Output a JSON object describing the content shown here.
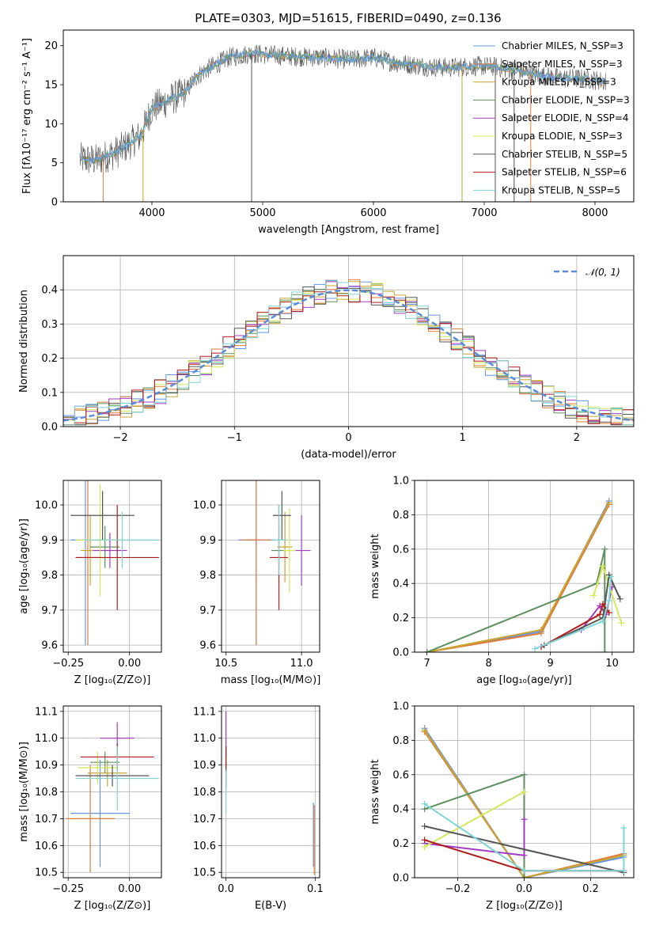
{
  "title": "PLATE=0303, MJD=51615, FIBERID=0490, z=0.136",
  "colors": [
    "#6495ed",
    "#e07b39",
    "#c8a530",
    "#5e8f5e",
    "#a23bc0",
    "#d4e85a",
    "#555555",
    "#b01c1c",
    "#7fd4d4"
  ],
  "chart_data": [
    {
      "id": "spectrum",
      "type": "line",
      "xlabel": "wavelength [Angstrom, rest frame]",
      "ylabel": "Flux [fλ10⁻¹⁷ erg cm⁻² s⁻¹ A⁻¹]",
      "xlim": [
        3200,
        8350
      ],
      "ylim": [
        0,
        22
      ],
      "xticks": [
        "4000",
        "5000",
        "6000",
        "7000",
        "8000"
      ],
      "yticks": [
        "0",
        "5",
        "10",
        "15",
        "20"
      ],
      "legend_position": "upper right",
      "legend": [
        "Chabrier MILES, N_SSP=3",
        "Salpeter MILES, N_SSP=3",
        "Kroupa MILES, N_SSP=3",
        "Chabrier ELODIE, N_SSP=3",
        "Salpeter ELODIE, N_SSP=4",
        "Kroupa ELODIE, N_SSP=3",
        "Chabrier STELIB, N_SSP=5",
        "Salpeter STELIB, N_SSP=6",
        "Kroupa STELIB, N_SSP=5"
      ],
      "continuum": {
        "x": [
          3350,
          3500,
          3700,
          3900,
          4000,
          4150,
          4300,
          4400,
          4500,
          4700,
          4900,
          5100,
          5300,
          5500,
          5800,
          6000,
          6200,
          6500,
          6700,
          6900,
          7100,
          7300,
          7500,
          7700,
          7900,
          8100
        ],
        "y": [
          5.5,
          5.3,
          6.5,
          8.5,
          12,
          13,
          14,
          16,
          17,
          18.5,
          19,
          18.8,
          18.6,
          18.5,
          18.2,
          18.5,
          17.8,
          17.3,
          17.2,
          17.4,
          17.3,
          16.8,
          16.2,
          15.8,
          15.8,
          15.4
        ]
      },
      "dropouts": [
        {
          "x": 3560,
          "series": "Salpeter MILES"
        },
        {
          "x": 3920,
          "series": "Kroupa MILES"
        },
        {
          "x": 4900,
          "series": "Chabrier STELIB"
        },
        {
          "x": 6800,
          "series": "Kroupa MILES"
        },
        {
          "x": 7100,
          "series": "Chabrier STELIB"
        },
        {
          "x": 7270,
          "series": "Chabrier STELIB"
        },
        {
          "x": 7420,
          "series": "Salpeter MILES"
        }
      ]
    },
    {
      "id": "residuals",
      "type": "histogram",
      "xlabel": "(data-model)/error",
      "ylabel": "Normed distribution",
      "xlim": [
        -2.5,
        2.5
      ],
      "ylim": [
        0,
        0.5
      ],
      "xticks": [
        "−2",
        "−1",
        "0",
        "1",
        "2"
      ],
      "yticks": [
        "0.0",
        "0.1",
        "0.2",
        "0.3",
        "0.4"
      ],
      "legend": [
        "𝒩(0, 1)"
      ],
      "bin_width": 0.1
    },
    {
      "id": "age-vs-Z",
      "type": "scatter",
      "xlabel": "Z [log₁₀(Z/Z⊙)]",
      "ylabel": "age  [log₁₀(age/yr)]",
      "xlim": [
        -0.27,
        0.13
      ],
      "ylim": [
        9.58,
        10.07
      ],
      "xticks": [
        "−0.25",
        "0.00"
      ],
      "yticks": [
        "9.6",
        "9.7",
        "9.8",
        "9.9",
        "10.0"
      ],
      "points": [
        {
          "x": -0.18,
          "y": 9.9,
          "xerr": 0.06,
          "yerr": 0.3
        },
        {
          "x": -0.17,
          "y": 9.85,
          "xerr": 0.05,
          "yerr": 0.25
        },
        {
          "x": -0.16,
          "y": 9.87,
          "xerr": 0.04,
          "yerr": 0.1
        },
        {
          "x": -0.1,
          "y": 9.88,
          "xerr": 0.06,
          "yerr": 0.06
        },
        {
          "x": -0.08,
          "y": 9.87,
          "xerr": 0.07,
          "yerr": 0.05
        },
        {
          "x": -0.12,
          "y": 9.9,
          "xerr": 0.1,
          "yerr": 0.16
        },
        {
          "x": -0.11,
          "y": 9.97,
          "xerr": 0.13,
          "yerr": 0.07
        },
        {
          "x": -0.05,
          "y": 9.85,
          "xerr": 0.17,
          "yerr": 0.15
        },
        {
          "x": -0.03,
          "y": 9.9,
          "xerr": 0.15,
          "yerr": 0.08
        }
      ]
    },
    {
      "id": "age-vs-mass",
      "type": "scatter",
      "xlabel": "mass [log₁₀(M/M⊙)]",
      "ylabel": "",
      "xlim": [
        10.47,
        11.12
      ],
      "ylim": [
        9.58,
        10.07
      ],
      "xticks": [
        "10.5",
        "11.0"
      ],
      "yticks": [
        "9.6",
        "9.7",
        "9.8",
        "9.9",
        "10.0"
      ],
      "points": [
        {
          "x": 10.7,
          "y": 9.9,
          "xerr": 0.12,
          "yerr": 0.3
        },
        {
          "x": 10.7,
          "y": 9.9,
          "xerr": 0.1,
          "yerr": 0.3
        },
        {
          "x": 10.89,
          "y": 9.88,
          "xerr": 0.05,
          "yerr": 0.1
        },
        {
          "x": 10.85,
          "y": 9.87,
          "xerr": 0.05,
          "yerr": 0.08
        },
        {
          "x": 11.0,
          "y": 9.87,
          "xerr": 0.06,
          "yerr": 0.1
        },
        {
          "x": 10.92,
          "y": 9.87,
          "xerr": 0.04,
          "yerr": 0.12
        },
        {
          "x": 10.87,
          "y": 9.97,
          "xerr": 0.06,
          "yerr": 0.07
        },
        {
          "x": 10.85,
          "y": 9.85,
          "xerr": 0.06,
          "yerr": 0.15
        },
        {
          "x": 10.85,
          "y": 9.9,
          "xerr": 0.05,
          "yerr": 0.1
        }
      ]
    },
    {
      "id": "mass-weight-vs-age",
      "type": "line",
      "xlabel": "age  [log₁₀(age/yr)]",
      "ylabel": "mass weight",
      "xlim": [
        6.8,
        10.35
      ],
      "ylim": [
        0,
        1
      ],
      "xticks": [
        "7",
        "8",
        "9",
        "10"
      ],
      "yticks": [
        "0.0",
        "0.2",
        "0.4",
        "0.6",
        "0.8",
        "1.0"
      ],
      "series": [
        {
          "x": [
            7.0,
            8.85,
            9.95
          ],
          "y": [
            0.0,
            0.12,
            0.88
          ]
        },
        {
          "x": [
            7.0,
            8.85,
            9.95
          ],
          "y": [
            0.0,
            0.11,
            0.86
          ]
        },
        {
          "x": [
            7.0,
            8.85,
            9.95
          ],
          "y": [
            0.0,
            0.13,
            0.87
          ]
        },
        {
          "x": [
            7.0,
            9.75,
            9.88,
            9.88
          ],
          "y": [
            0.0,
            0.4,
            0.6,
            0.0
          ]
        },
        {
          "x": [
            9.5,
            9.8,
            9.9,
            10.0
          ],
          "y": [
            0.13,
            0.27,
            0.22,
            0.38
          ]
        },
        {
          "x": [
            9.7,
            9.85,
            10.15
          ],
          "y": [
            0.33,
            0.5,
            0.17
          ]
        },
        {
          "x": [
            8.9,
            9.85,
            9.95,
            10.13
          ],
          "y": [
            0.04,
            0.2,
            0.45,
            0.31
          ]
        },
        {
          "x": [
            8.85,
            9.8,
            9.85,
            9.95
          ],
          "y": [
            0.03,
            0.22,
            0.28,
            0.23
          ]
        },
        {
          "x": [
            8.75,
            9.85,
            9.95,
            9.98
          ],
          "y": [
            0.02,
            0.18,
            0.3,
            0.44
          ]
        }
      ]
    },
    {
      "id": "mass-vs-Z",
      "type": "scatter",
      "xlabel": "Z [log₁₀(Z/Z⊙)]",
      "ylabel": "mass [log₁₀(M/M⊙)]",
      "xlim": [
        -0.27,
        0.13
      ],
      "ylim": [
        10.48,
        11.12
      ],
      "xticks": [
        "−0.25",
        "0.00"
      ],
      "yticks": [
        "10.5",
        "10.6",
        "10.7",
        "10.8",
        "10.9",
        "11.0",
        "11.1"
      ],
      "points": [
        {
          "x": -0.12,
          "y": 10.72,
          "xerr": 0.12,
          "yerr": 0.2
        },
        {
          "x": -0.16,
          "y": 10.7,
          "xerr": 0.1,
          "yerr": 0.2
        },
        {
          "x": -0.09,
          "y": 10.87,
          "xerr": 0.08,
          "yerr": 0.05
        },
        {
          "x": -0.1,
          "y": 10.91,
          "xerr": 0.06,
          "yerr": 0.04
        },
        {
          "x": -0.05,
          "y": 11.0,
          "xerr": 0.07,
          "yerr": 0.06
        },
        {
          "x": -0.13,
          "y": 10.89,
          "xerr": 0.08,
          "yerr": 0.06
        },
        {
          "x": -0.07,
          "y": 10.86,
          "xerr": 0.15,
          "yerr": 0.04
        },
        {
          "x": -0.05,
          "y": 10.93,
          "xerr": 0.15,
          "yerr": 0.05
        },
        {
          "x": -0.05,
          "y": 10.85,
          "xerr": 0.17,
          "yerr": 0.12
        }
      ]
    },
    {
      "id": "mass-vs-EBV",
      "type": "scatter",
      "xlabel": "E(B-V)",
      "ylabel": "",
      "xlim": [
        -0.005,
        0.105
      ],
      "ylim": [
        10.48,
        11.12
      ],
      "xticks": [
        "0.0",
        "0.1"
      ],
      "yticks": [
        "10.5",
        "10.6",
        "10.7",
        "10.8",
        "10.9",
        "11.0",
        "11.1"
      ],
      "points": [
        {
          "x": 0.098,
          "y": 10.64,
          "xerr": 0.0,
          "yerr": 0.12
        },
        {
          "x": 0.099,
          "y": 10.62,
          "xerr": 0.0,
          "yerr": 0.13
        },
        {
          "x": 0.0,
          "y": 10.88,
          "xerr": 0.0,
          "yerr": 0.06
        },
        {
          "x": 0.0,
          "y": 10.92,
          "xerr": 0.0,
          "yerr": 0.04
        },
        {
          "x": 0.0,
          "y": 11.0,
          "xerr": 0.0,
          "yerr": 0.1
        },
        {
          "x": 0.0,
          "y": 10.88,
          "xerr": 0.0,
          "yerr": 0.05
        },
        {
          "x": 0.0,
          "y": 10.86,
          "xerr": 0.0,
          "yerr": 0.05
        },
        {
          "x": 0.0,
          "y": 10.93,
          "xerr": 0.0,
          "yerr": 0.04
        },
        {
          "x": 0.0,
          "y": 10.8,
          "xerr": 0.0,
          "yerr": 0.08
        }
      ]
    },
    {
      "id": "mass-weight-vs-Z",
      "type": "line",
      "xlabel": "Z [log₁₀(Z/Z⊙)]",
      "ylabel": "mass weight",
      "xlim": [
        -0.33,
        0.33
      ],
      "ylim": [
        0,
        1
      ],
      "xticks": [
        "−0.2",
        "0.0",
        "0.2"
      ],
      "yticks": [
        "0.0",
        "0.2",
        "0.4",
        "0.6",
        "0.8",
        "1.0"
      ],
      "series": [
        {
          "x": [
            -0.3,
            0.0,
            0.3
          ],
          "y": [
            0.87,
            0.0,
            0.12
          ]
        },
        {
          "x": [
            -0.3,
            0.0,
            0.3
          ],
          "y": [
            0.85,
            0.0,
            0.14
          ]
        },
        {
          "x": [
            -0.3,
            0.0,
            0.3
          ],
          "y": [
            0.86,
            0.0,
            0.13
          ]
        },
        {
          "x": [
            -0.3,
            0.0,
            0.0
          ],
          "y": [
            0.4,
            0.6,
            0.0
          ]
        },
        {
          "x": [
            -0.3,
            0.0,
            0.0
          ],
          "y": [
            0.2,
            0.13,
            0.34
          ]
        },
        {
          "x": [
            -0.3,
            0.0
          ],
          "y": [
            0.18,
            0.5
          ]
        },
        {
          "x": [
            -0.3,
            0.3
          ],
          "y": [
            0.3,
            0.03
          ]
        },
        {
          "x": [
            -0.3,
            0.0,
            0.3
          ],
          "y": [
            0.22,
            0.04,
            0.04
          ]
        },
        {
          "x": [
            -0.3,
            0.0,
            0.3,
            0.3
          ],
          "y": [
            0.43,
            0.04,
            0.04,
            0.29
          ]
        }
      ]
    }
  ]
}
